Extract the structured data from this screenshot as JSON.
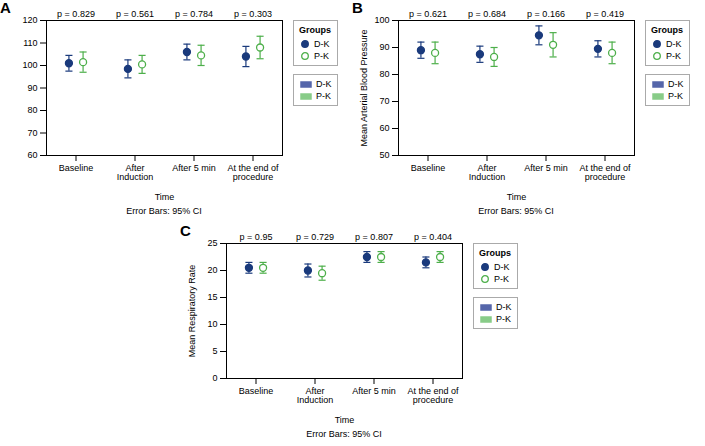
{
  "chart_data": [
    {
      "type": "scatter",
      "title": "A",
      "xlabel": "Time",
      "categories": [
        "Baseline",
        "After\nInduction",
        "After 5 min",
        "At the end of\nprocedure"
      ],
      "series": [
        {
          "name": "D-K",
          "color": "#1a3a7c",
          "marker": "filled_circle",
          "values": [
            101.0,
            98.5,
            106.0,
            104.0
          ],
          "ci_low": [
            97.5,
            94.5,
            102.5,
            99.5
          ],
          "ci_high": [
            104.5,
            102.5,
            109.5,
            108.5
          ]
        },
        {
          "name": "P-K",
          "color": "#4daf4a",
          "marker": "open_circle",
          "values": [
            101.5,
            100.5,
            104.5,
            108.0
          ],
          "ci_low": [
            97.0,
            96.5,
            100.0,
            103.0
          ],
          "ci_high": [
            106.0,
            104.5,
            109.0,
            113.0
          ]
        }
      ],
      "annotations": [
        "p = 0.829",
        "p = 0.561",
        "p = 0.784",
        "p = 0.303"
      ],
      "caption": "Error Bars: 95% CI",
      "ylim": [
        60,
        120
      ],
      "yticks": [
        60,
        70,
        80,
        90,
        100,
        110,
        120
      ],
      "grid": false,
      "legend": "right",
      "legend_title": "Groups",
      "patch_legend": [
        {
          "name": "D-K",
          "color": "#5566aa"
        },
        {
          "name": "P-K",
          "color": "#88cc88"
        }
      ]
    },
    {
      "type": "scatter",
      "title": "B",
      "xlabel": "Time",
      "ylabel": "Mean Arterial Blood Pressure",
      "categories": [
        "Baseline",
        "After\nInduction",
        "After 5 min",
        "At the end of\nprocedure"
      ],
      "series": [
        {
          "name": "D-K",
          "color": "#1a3a7c",
          "marker": "filled_circle",
          "values": [
            89.0,
            87.5,
            94.5,
            89.5
          ],
          "ci_low": [
            86.0,
            84.5,
            91.0,
            86.5
          ],
          "ci_high": [
            92.0,
            90.5,
            98.0,
            92.5
          ]
        },
        {
          "name": "P-K",
          "color": "#4daf4a",
          "marker": "open_circle",
          "values": [
            88.0,
            86.5,
            91.0,
            88.0
          ],
          "ci_low": [
            84.0,
            83.0,
            86.5,
            84.0
          ],
          "ci_high": [
            92.0,
            90.0,
            95.5,
            92.0
          ]
        }
      ],
      "annotations": [
        "p = 0.621",
        "p = 0.684",
        "p = 0.166",
        "p = 0.419"
      ],
      "caption": "Error Bars: 95% CI",
      "ylim": [
        50,
        100
      ],
      "yticks": [
        50,
        60,
        70,
        80,
        90,
        100
      ],
      "grid": false,
      "legend": "right",
      "legend_title": "Groups",
      "patch_legend": [
        {
          "name": "D-K",
          "color": "#5566aa"
        },
        {
          "name": "P-K",
          "color": "#88cc88"
        }
      ]
    },
    {
      "type": "scatter",
      "title": "C",
      "xlabel": "Time",
      "ylabel": "Mean Respiratory Rate",
      "categories": [
        "Baseline",
        "After\nInduction",
        "After 5 min",
        "At the end of\nprocedure"
      ],
      "series": [
        {
          "name": "D-K",
          "color": "#1a3a7c",
          "marker": "filled_circle",
          "values": [
            20.5,
            20.0,
            22.5,
            21.5
          ],
          "ci_low": [
            19.5,
            18.8,
            21.5,
            20.5
          ],
          "ci_high": [
            21.5,
            21.2,
            23.5,
            22.5
          ]
        },
        {
          "name": "P-K",
          "color": "#4daf4a",
          "marker": "open_circle",
          "values": [
            20.5,
            19.5,
            22.5,
            22.5
          ],
          "ci_low": [
            19.5,
            18.2,
            21.5,
            21.5
          ],
          "ci_high": [
            21.5,
            20.8,
            23.5,
            23.5
          ]
        }
      ],
      "annotations": [
        "p = 0.95",
        "p = 0.729",
        "p = 0.807",
        "p = 0.404"
      ],
      "caption": "Error Bars: 95% CI",
      "ylim": [
        0,
        25
      ],
      "yticks": [
        0,
        5,
        10,
        15,
        20,
        25
      ],
      "grid": false,
      "legend": "right",
      "legend_title": "Groups",
      "patch_legend": [
        {
          "name": "D-K",
          "color": "#5566aa"
        },
        {
          "name": "P-K",
          "color": "#88cc88"
        }
      ]
    }
  ]
}
